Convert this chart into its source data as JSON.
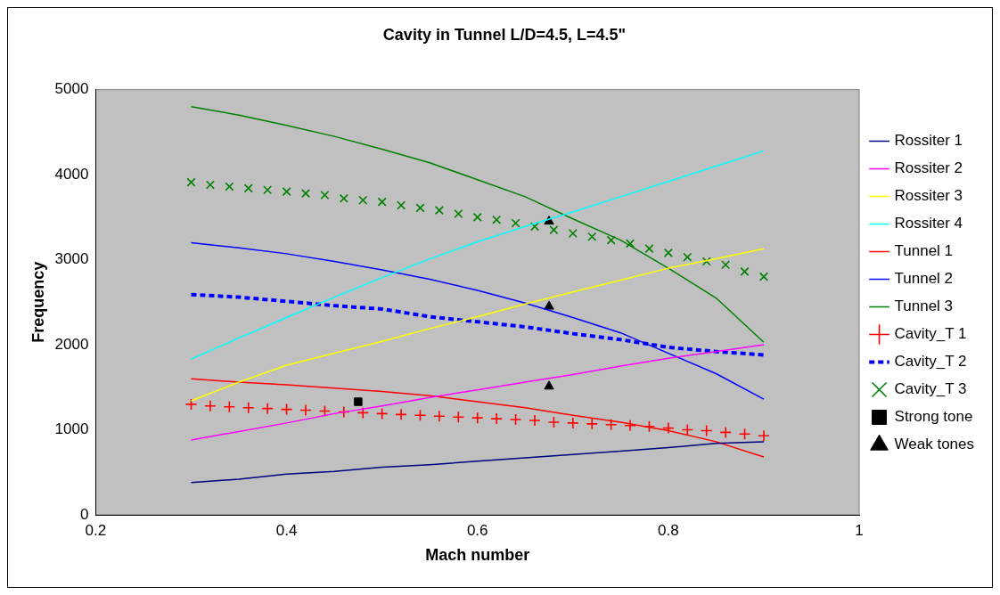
{
  "chart_data": {
    "type": "line",
    "title": "Cavity in Tunnel L/D=4.5, L=4.5\"",
    "xlabel": "Mach number",
    "ylabel": "Frequency",
    "x": [
      0.3,
      0.35,
      0.4,
      0.45,
      0.5,
      0.55,
      0.6,
      0.65,
      0.7,
      0.75,
      0.8,
      0.85,
      0.9
    ],
    "xlim": [
      0.2,
      1
    ],
    "xticks": [
      0.2,
      0.4,
      0.6,
      0.8,
      1
    ],
    "ylim": [
      0,
      5000
    ],
    "yticks": [
      0,
      1000,
      2000,
      3000,
      4000,
      5000
    ],
    "grid": false,
    "legend": "right",
    "marker": "none",
    "line_style": "solid",
    "series": [
      {
        "name": "Rossiter 1",
        "color": "#000080",
        "values": [
          380,
          420,
          480,
          510,
          560,
          590,
          630,
          670,
          710,
          750,
          790,
          840,
          860
        ]
      },
      {
        "name": "Rossiter 2",
        "color": "#ff00ff",
        "values": [
          880,
          980,
          1080,
          1190,
          1280,
          1380,
          1470,
          1560,
          1650,
          1750,
          1840,
          1920,
          2000
        ]
      },
      {
        "name": "Rossiter 3",
        "color": "#ffff00",
        "values": [
          1340,
          1560,
          1760,
          1900,
          2040,
          2190,
          2330,
          2480,
          2620,
          2760,
          2900,
          3010,
          3130
        ]
      },
      {
        "name": "Rossiter 4",
        "color": "#00ffff",
        "values": [
          1830,
          2080,
          2320,
          2560,
          2790,
          3010,
          3210,
          3390,
          3560,
          3740,
          3920,
          4100,
          4280
        ]
      },
      {
        "name": "Tunnel 1",
        "color": "#ff0000",
        "values": [
          1600,
          1560,
          1530,
          1490,
          1450,
          1400,
          1330,
          1260,
          1170,
          1090,
          990,
          860,
          680
        ]
      },
      {
        "name": "Tunnel 2",
        "color": "#0000ff",
        "values": [
          3200,
          3140,
          3070,
          2980,
          2880,
          2770,
          2640,
          2490,
          2320,
          2140,
          1900,
          1660,
          1360
        ]
      },
      {
        "name": "Tunnel 3",
        "color": "#008000",
        "values": [
          4800,
          4700,
          4580,
          4450,
          4300,
          4140,
          3940,
          3740,
          3480,
          3230,
          2900,
          2550,
          2030
        ]
      },
      {
        "name": "Cavity_T 1",
        "type": "scatter",
        "marker": "plus",
        "color": "#ff0000",
        "x": [
          0.3,
          0.32,
          0.34,
          0.36,
          0.38,
          0.4,
          0.42,
          0.44,
          0.46,
          0.48,
          0.5,
          0.52,
          0.54,
          0.56,
          0.58,
          0.6,
          0.62,
          0.64,
          0.66,
          0.68,
          0.7,
          0.72,
          0.74,
          0.76,
          0.78,
          0.8,
          0.82,
          0.84,
          0.86,
          0.88,
          0.9
        ],
        "values": [
          1300,
          1280,
          1270,
          1260,
          1250,
          1240,
          1230,
          1220,
          1210,
          1200,
          1190,
          1180,
          1170,
          1160,
          1150,
          1140,
          1130,
          1120,
          1110,
          1090,
          1080,
          1070,
          1060,
          1050,
          1040,
          1020,
          1000,
          990,
          970,
          950,
          930
        ]
      },
      {
        "name": "Cavity_T 2",
        "line_style": "dashed",
        "color": "#0000ff",
        "values": [
          2590,
          2560,
          2510,
          2460,
          2420,
          2330,
          2270,
          2210,
          2130,
          2060,
          1970,
          1920,
          1880
        ]
      },
      {
        "name": "Cavity_T 3",
        "type": "scatter",
        "marker": "cross",
        "color": "#008000",
        "x": [
          0.3,
          0.32,
          0.34,
          0.36,
          0.38,
          0.4,
          0.42,
          0.44,
          0.46,
          0.48,
          0.5,
          0.52,
          0.54,
          0.56,
          0.58,
          0.6,
          0.62,
          0.64,
          0.66,
          0.68,
          0.7,
          0.72,
          0.74,
          0.76,
          0.78,
          0.8,
          0.82,
          0.84,
          0.86,
          0.88,
          0.9
        ],
        "values": [
          3910,
          3880,
          3860,
          3840,
          3820,
          3800,
          3780,
          3760,
          3720,
          3700,
          3680,
          3640,
          3610,
          3580,
          3540,
          3500,
          3470,
          3430,
          3390,
          3350,
          3310,
          3270,
          3230,
          3190,
          3130,
          3080,
          3030,
          2980,
          2940,
          2860,
          2800
        ]
      },
      {
        "name": "Strong tone",
        "type": "scatter",
        "marker": "square",
        "color": "#000000",
        "x": [
          0.475
        ],
        "values": [
          1330
        ]
      },
      {
        "name": "Weak tones",
        "type": "scatter",
        "marker": "triangle",
        "color": "#000000",
        "x": [
          0.675,
          0.675,
          0.675
        ],
        "values": [
          3450,
          2450,
          1510
        ]
      }
    ]
  }
}
